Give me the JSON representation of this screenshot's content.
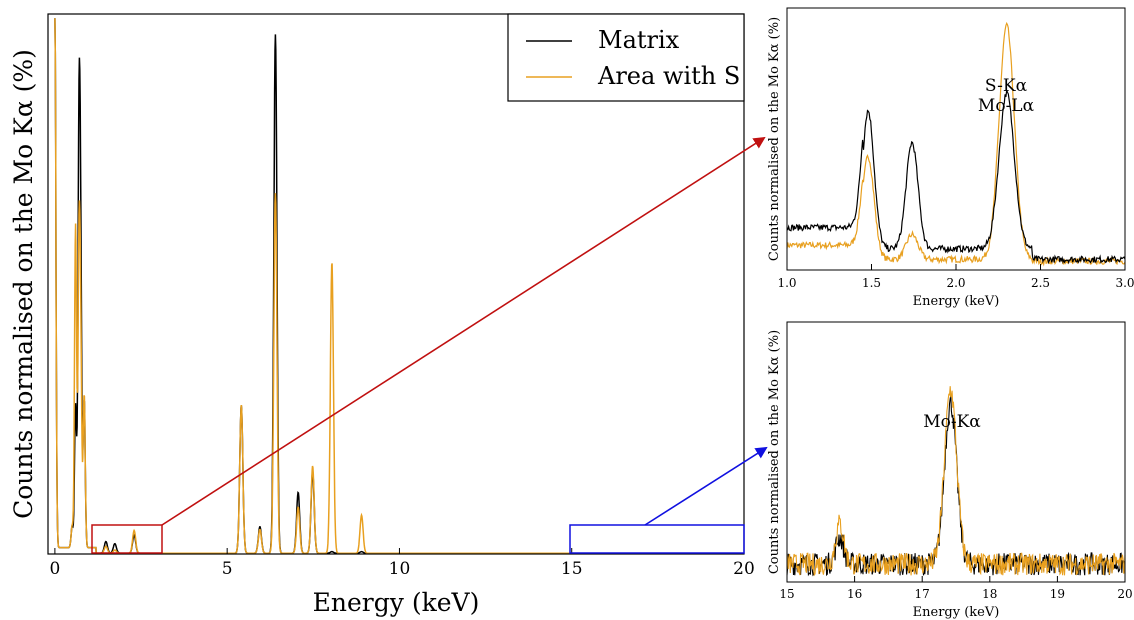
{
  "colors": {
    "matrix": "#000000",
    "area_with_s": "#e8a020",
    "zoom_low": "#c01010",
    "zoom_high": "#1010e0"
  },
  "chart_data": [
    {
      "type": "line",
      "panel": "main",
      "xlabel": "Energy (keV)",
      "ylabel": "Counts normalised on the Mo Kα (%)",
      "xlim": [
        -0.2,
        20
      ],
      "xticks": [
        "0",
        "5",
        "10",
        "15",
        "20"
      ],
      "legend": {
        "placement": "top-right",
        "entries": [
          "Matrix",
          "Area with S"
        ]
      },
      "series": [
        {
          "name": "Matrix",
          "color": "#000000",
          "x": [
            0.0,
            0.5,
            0.6,
            0.7,
            0.75,
            0.85,
            1.48,
            1.74,
            2.3,
            5.41,
            5.95,
            6.4,
            7.06,
            7.48,
            8.04,
            8.9
          ],
          "y": [
            100,
            4,
            27,
            76,
            50,
            28,
            2.2,
            1.8,
            3.4,
            28,
            5,
            98,
            11.5,
            15.5,
            0.3,
            0.3
          ]
        },
        {
          "name": "Area with S",
          "color": "#e8a020",
          "x": [
            0.0,
            0.5,
            0.6,
            0.7,
            0.75,
            0.85,
            1.48,
            1.74,
            2.3,
            5.41,
            5.95,
            6.4,
            7.06,
            7.48,
            8.04,
            8.9
          ],
          "y": [
            100,
            4,
            61,
            54,
            35,
            29,
            1.3,
            0.6,
            4.3,
            28,
            4.5,
            68,
            8.7,
            16.5,
            55,
            7.2
          ]
        }
      ],
      "zoom_regions": [
        {
          "xrange": [
            1.0,
            3.0
          ],
          "target": "inset-low"
        },
        {
          "xrange": [
            15,
            20
          ],
          "target": "inset-high"
        }
      ]
    },
    {
      "type": "line",
      "panel": "inset-low",
      "xlabel": "Energy (keV)",
      "ylabel": "Counts normalised on the Mo Kα (%)",
      "xlim": [
        1.0,
        3.0
      ],
      "xticks": [
        "1.0",
        "1.5",
        "2.0",
        "2.5",
        "3.0"
      ],
      "annotations": [
        "S-Kα",
        "Mo-Lα"
      ],
      "series": [
        {
          "name": "Matrix",
          "color": "#000000",
          "x": [
            1.0,
            1.2,
            1.4,
            1.48,
            1.6,
            1.74,
            1.9,
            2.3,
            2.5,
            3.0
          ],
          "y": [
            1.3,
            1.1,
            1.2,
            3.9,
            0.9,
            3.0,
            0.5,
            4.4,
            0.4,
            0.25
          ]
        },
        {
          "name": "Area with S",
          "color": "#e8a020",
          "x": [
            1.0,
            1.2,
            1.4,
            1.48,
            1.6,
            1.74,
            1.9,
            2.3,
            2.5,
            3.0
          ],
          "y": [
            0.8,
            0.7,
            0.8,
            2.9,
            0.5,
            0.7,
            0.3,
            6.6,
            0.3,
            0.2
          ]
        }
      ]
    },
    {
      "type": "line",
      "panel": "inset-high",
      "xlabel": "Energy (keV)",
      "ylabel": "Counts normalised on the Mo Kα (%)",
      "xlim": [
        15,
        20
      ],
      "xticks": [
        "15",
        "16",
        "17",
        "18",
        "19",
        "20"
      ],
      "annotations": [
        "Mo-Kα"
      ],
      "series": [
        {
          "name": "Matrix",
          "color": "#000000",
          "x": [
            15.0,
            15.5,
            15.78,
            16.0,
            17.0,
            17.42,
            17.8,
            20.0
          ],
          "y": [
            0.4,
            0.5,
            1.0,
            0.3,
            0.5,
            4.0,
            0.4,
            0.3
          ]
        },
        {
          "name": "Area with S",
          "color": "#e8a020",
          "x": [
            15.0,
            15.5,
            15.78,
            16.0,
            17.0,
            17.42,
            17.8,
            20.0
          ],
          "y": [
            0.4,
            0.5,
            1.3,
            0.3,
            0.5,
            4.3,
            0.4,
            0.3
          ]
        }
      ]
    }
  ]
}
